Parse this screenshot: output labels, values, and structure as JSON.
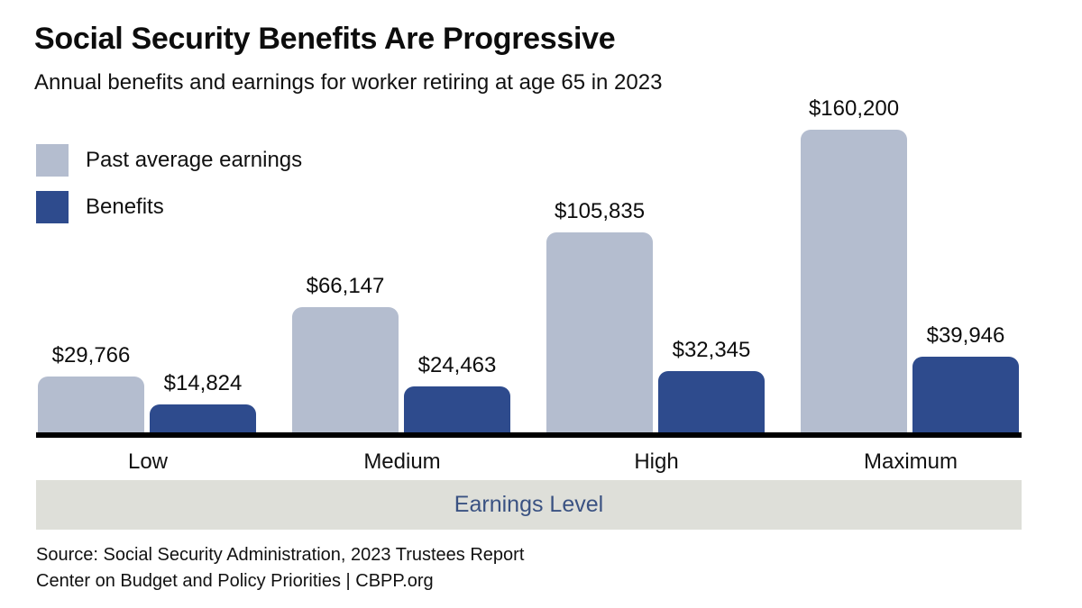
{
  "chart": {
    "title": "Social Security Benefits Are Progressive",
    "subtitle": "Annual benefits and earnings for worker retiring at age 65 in 2023",
    "source_line": "Source: Social Security Administration, 2023 Trustees Report",
    "credit_line": "Center on Budget and Policy Priorities | CBPP.org",
    "colors": {
      "earnings_bar": "#b4bdcf",
      "benefits_bar": "#2e4b8d",
      "axis_band_bg": "#dedfd9",
      "axis_band_text": "#3a5282",
      "baseline": "#000000"
    }
  },
  "chart_data": {
    "type": "bar",
    "categories": [
      "Low",
      "Medium",
      "High",
      "Maximum"
    ],
    "series": [
      {
        "name": "Past average earnings",
        "values": [
          29766,
          66147,
          105835,
          160200
        ],
        "labels": [
          "$29,766",
          "$66,147",
          "$105,835",
          "$160,200"
        ]
      },
      {
        "name": "Benefits",
        "values": [
          14824,
          24463,
          32345,
          39946
        ],
        "labels": [
          "$14,824",
          "$24,463",
          "$32,345",
          "$39,946"
        ]
      }
    ],
    "title": "Social Security Benefits Are Progressive",
    "subtitle": "Annual benefits and earnings for worker retiring at age 65 in 2023",
    "xlabel": "Earnings Level",
    "ylabel": "",
    "ylim": [
      0,
      160200
    ],
    "grid": false,
    "legend_position": "top-left",
    "value_labels_shown": true,
    "y_axis_shown": false
  }
}
